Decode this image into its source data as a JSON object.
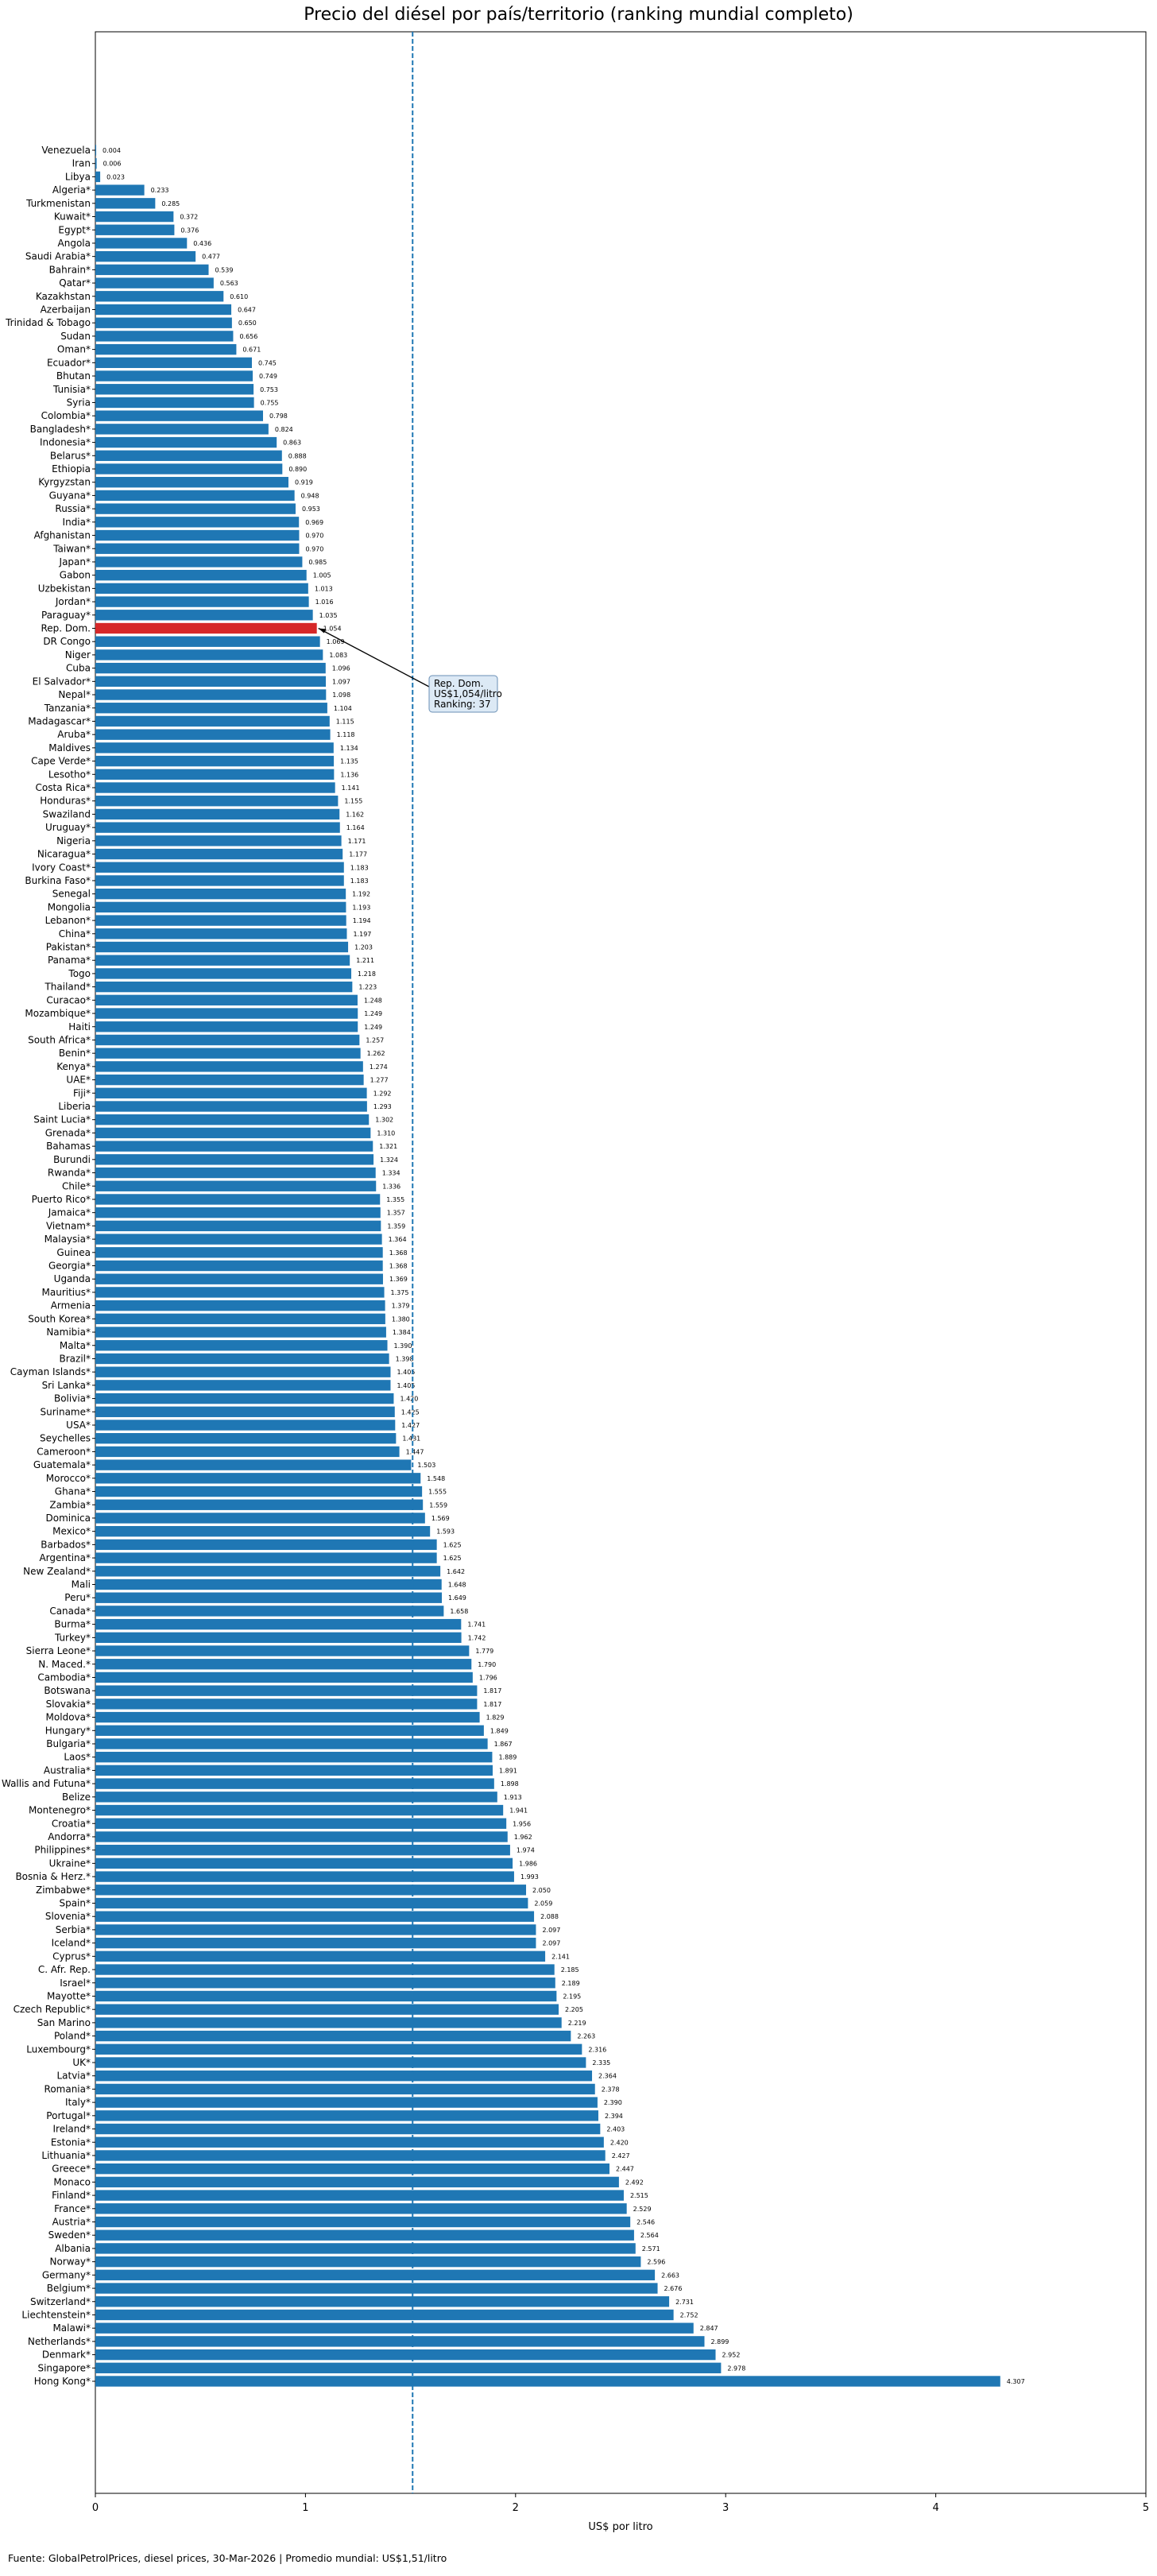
{
  "chart_data": {
    "type": "bar",
    "orientation": "horizontal",
    "title": "Precio del diésel por país/territorio (ranking mundial completo)",
    "xlabel": "US$ por litro",
    "ylabel": "",
    "xlim": [
      0,
      5
    ],
    "xticks": [
      "0",
      "1",
      "2",
      "3",
      "4",
      "5"
    ],
    "grid": false,
    "colors": {
      "bar": "#1f77b4",
      "highlight": "#d62728",
      "reference_line": "#1f77b4",
      "annotation_box": "#dce9f5"
    },
    "reference_line": {
      "value": 1.51
    },
    "highlight": {
      "category": "Rep. Dom.",
      "annotation": [
        "Rep. Dom.",
        "US$1,054/litro",
        "Ranking: 37"
      ]
    },
    "categories": [
      "Venezuela",
      "Iran",
      "Libya",
      "Algeria*",
      "Turkmenistan",
      "Kuwait*",
      "Egypt*",
      "Angola",
      "Saudi Arabia*",
      "Bahrain*",
      "Qatar*",
      "Kazakhstan",
      "Azerbaijan",
      "Trinidad & Tobago",
      "Sudan",
      "Oman*",
      "Ecuador*",
      "Bhutan",
      "Tunisia*",
      "Syria",
      "Colombia*",
      "Bangladesh*",
      "Indonesia*",
      "Belarus*",
      "Ethiopia",
      "Kyrgyzstan",
      "Guyana*",
      "Russia*",
      "India*",
      "Afghanistan",
      "Taiwan*",
      "Japan*",
      "Gabon",
      "Uzbekistan",
      "Jordan*",
      "Paraguay*",
      "Rep. Dom.",
      "DR Congo",
      "Niger",
      "Cuba",
      "El Salvador*",
      "Nepal*",
      "Tanzania*",
      "Madagascar*",
      "Aruba*",
      "Maldives",
      "Cape Verde*",
      "Lesotho*",
      "Costa Rica*",
      "Honduras*",
      "Swaziland",
      "Uruguay*",
      "Nigeria",
      "Nicaragua*",
      "Ivory Coast*",
      "Burkina Faso*",
      "Senegal",
      "Mongolia",
      "Lebanon*",
      "China*",
      "Pakistan*",
      "Panama*",
      "Togo",
      "Thailand*",
      "Curacao*",
      "Mozambique*",
      "Haiti",
      "South Africa*",
      "Benin*",
      "Kenya*",
      "UAE*",
      "Fiji*",
      "Liberia",
      "Saint Lucia*",
      "Grenada*",
      "Bahamas",
      "Burundi",
      "Rwanda*",
      "Chile*",
      "Puerto Rico*",
      "Jamaica*",
      "Vietnam*",
      "Malaysia*",
      "Guinea",
      "Georgia*",
      "Uganda",
      "Mauritius*",
      "Armenia",
      "South Korea*",
      "Namibia*",
      "Malta*",
      "Brazil*",
      "Cayman Islands*",
      "Sri Lanka*",
      "Bolivia*",
      "Suriname*",
      "USA*",
      "Seychelles",
      "Cameroon*",
      "Guatemala*",
      "Morocco*",
      "Ghana*",
      "Zambia*",
      "Dominica",
      "Mexico*",
      "Barbados*",
      "Argentina*",
      "New Zealand*",
      "Mali",
      "Peru*",
      "Canada*",
      "Burma*",
      "Turkey*",
      "Sierra Leone*",
      "N. Maced.*",
      "Cambodia*",
      "Botswana",
      "Slovakia*",
      "Moldova*",
      "Hungary*",
      "Bulgaria*",
      "Laos*",
      "Australia*",
      "Wallis and Futuna*",
      "Belize",
      "Montenegro*",
      "Croatia*",
      "Andorra*",
      "Philippines*",
      "Ukraine*",
      "Bosnia & Herz.*",
      "Zimbabwe*",
      "Spain*",
      "Slovenia*",
      "Serbia*",
      "Iceland*",
      "Cyprus*",
      "C. Afr. Rep.",
      "Israel*",
      "Mayotte*",
      "Czech Republic*",
      "San Marino",
      "Poland*",
      "Luxembourg*",
      "UK*",
      "Latvia*",
      "Romania*",
      "Italy*",
      "Portugal*",
      "Ireland*",
      "Estonia*",
      "Lithuania*",
      "Greece*",
      "Monaco",
      "Finland*",
      "France*",
      "Austria*",
      "Sweden*",
      "Albania",
      "Norway*",
      "Germany*",
      "Belgium*",
      "Switzerland*",
      "Liechtenstein*",
      "Malawi*",
      "Netherlands*",
      "Denmark*",
      "Singapore*",
      "Hong Kong*"
    ],
    "values": [
      0.004,
      0.006,
      0.023,
      0.233,
      0.285,
      0.372,
      0.376,
      0.436,
      0.477,
      0.539,
      0.563,
      0.61,
      0.647,
      0.65,
      0.656,
      0.671,
      0.745,
      0.749,
      0.753,
      0.755,
      0.798,
      0.824,
      0.863,
      0.888,
      0.89,
      0.919,
      0.948,
      0.953,
      0.969,
      0.97,
      0.97,
      0.985,
      1.005,
      1.013,
      1.016,
      1.035,
      1.054,
      1.069,
      1.083,
      1.096,
      1.097,
      1.098,
      1.104,
      1.115,
      1.118,
      1.134,
      1.135,
      1.136,
      1.141,
      1.155,
      1.162,
      1.164,
      1.171,
      1.177,
      1.183,
      1.183,
      1.192,
      1.193,
      1.194,
      1.197,
      1.203,
      1.211,
      1.218,
      1.223,
      1.248,
      1.249,
      1.249,
      1.257,
      1.262,
      1.274,
      1.277,
      1.292,
      1.293,
      1.302,
      1.31,
      1.321,
      1.324,
      1.334,
      1.336,
      1.355,
      1.357,
      1.359,
      1.364,
      1.368,
      1.368,
      1.369,
      1.375,
      1.379,
      1.38,
      1.384,
      1.39,
      1.398,
      1.405,
      1.405,
      1.42,
      1.425,
      1.427,
      1.431,
      1.447,
      1.503,
      1.548,
      1.555,
      1.559,
      1.569,
      1.593,
      1.625,
      1.625,
      1.642,
      1.648,
      1.649,
      1.658,
      1.741,
      1.742,
      1.779,
      1.79,
      1.796,
      1.817,
      1.817,
      1.829,
      1.849,
      1.867,
      1.889,
      1.891,
      1.898,
      1.913,
      1.941,
      1.956,
      1.962,
      1.974,
      1.986,
      1.993,
      2.05,
      2.059,
      2.088,
      2.097,
      2.097,
      2.141,
      2.185,
      2.189,
      2.195,
      2.205,
      2.219,
      2.263,
      2.316,
      2.335,
      2.364,
      2.378,
      2.39,
      2.394,
      2.403,
      2.42,
      2.427,
      2.447,
      2.492,
      2.515,
      2.529,
      2.546,
      2.564,
      2.571,
      2.596,
      2.663,
      2.676,
      2.731,
      2.752,
      2.847,
      2.899,
      2.952,
      2.978,
      4.307
    ]
  },
  "footer": "Fuente: GlobalPetrolPrices, diesel prices, 30-Mar-2026 | Promedio mundial: US$1,51/litro"
}
